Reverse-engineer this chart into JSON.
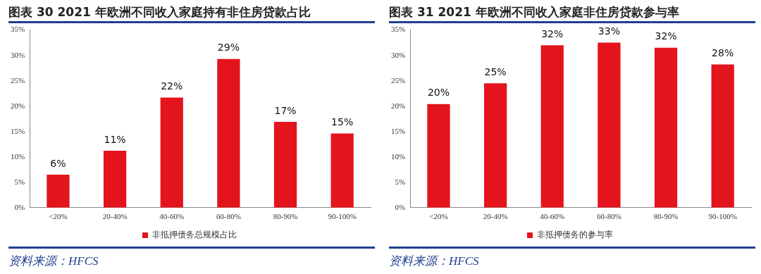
{
  "chart_data": [
    {
      "type": "bar",
      "title": "图表 30 2021 年欧洲不同收入家庭持有非住房贷款占比",
      "categories": [
        "<20%",
        "20-40%",
        "40-60%",
        "60-80%",
        "80-90%",
        "90-100%"
      ],
      "series": [
        {
          "name": "非抵押债务总规模占比",
          "color": "#e3141c",
          "values": [
            6.5,
            11.2,
            21.7,
            29.3,
            16.9,
            14.6
          ],
          "value_labels": [
            "6%",
            "11%",
            "22%",
            "29%",
            "17%",
            "15%"
          ]
        }
      ],
      "ylim": [
        0,
        35
      ],
      "yticks": [
        {
          "value": 0,
          "label": "0%"
        },
        {
          "value": 5,
          "label": "5%"
        },
        {
          "value": 10,
          "label": "10%"
        },
        {
          "value": 15,
          "label": "15%"
        },
        {
          "value": 20,
          "label": "20%"
        },
        {
          "value": 25,
          "label": "25%"
        },
        {
          "value": 30,
          "label": "30%"
        },
        {
          "value": 35,
          "label": "35%"
        }
      ],
      "grid": false,
      "legend": "bottom",
      "annotations": [
        "资料来源：HFCS"
      ]
    },
    {
      "type": "bar",
      "title": "图表 31   2021 年欧洲不同收入家庭非住房贷款参与率",
      "categories": [
        "<20%",
        "20-40%",
        "40-60%",
        "60-80%",
        "80-90%",
        "90-100%"
      ],
      "series": [
        {
          "name": "非抵押债务的参与率",
          "color": "#e3141c",
          "values": [
            20.4,
            24.5,
            32.0,
            32.5,
            31.5,
            28.2
          ],
          "value_labels": [
            "20%",
            "25%",
            "32%",
            "33%",
            "32%",
            "28%"
          ]
        }
      ],
      "ylim": [
        0,
        35
      ],
      "yticks": [
        {
          "value": 0,
          "label": "0%"
        },
        {
          "value": 5,
          "label": "5%"
        },
        {
          "value": 10,
          "label": "10%"
        },
        {
          "value": 15,
          "label": "15%"
        },
        {
          "value": 20,
          "label": "20%"
        },
        {
          "value": 25,
          "label": "25%"
        },
        {
          "value": 30,
          "label": "30%"
        },
        {
          "value": 35,
          "label": "35%"
        }
      ],
      "grid": false,
      "legend": "bottom",
      "annotations": [
        "资料来源：HFCS"
      ]
    }
  ]
}
